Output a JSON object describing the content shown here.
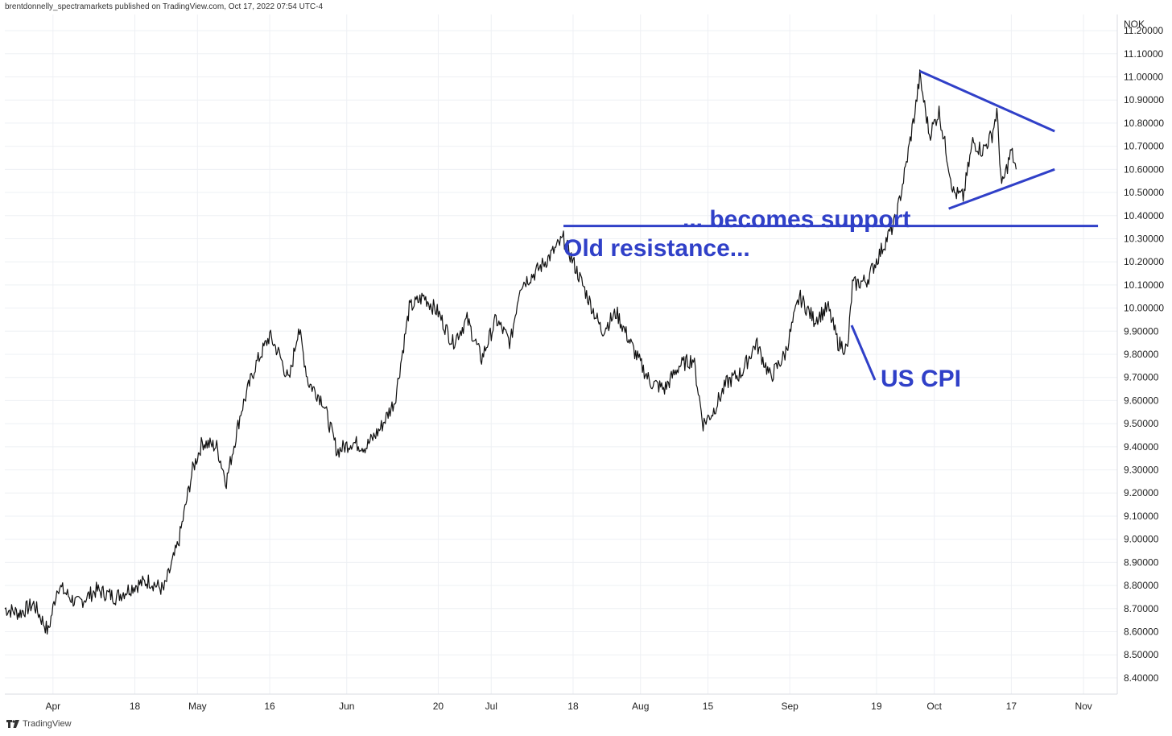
{
  "header": {
    "attribution": "brentdonnelly_spectramarkets published on TradingView.com, Oct 17, 2022 07:54 UTC-4"
  },
  "footer": {
    "brand": "TradingView"
  },
  "colors": {
    "annotation": "#3040c8",
    "price": "#111111",
    "grid": "#eef0f4",
    "axis": "#d8dbe2"
  },
  "chart_data": {
    "type": "line",
    "currency_label": "NOK",
    "ylim": [
      8.33,
      11.27
    ],
    "y_ticks": [
      "11.20000",
      "11.10000",
      "11.00000",
      "10.90000",
      "10.80000",
      "10.70000",
      "10.60000",
      "10.50000",
      "10.40000",
      "10.30000",
      "10.20000",
      "10.10000",
      "10.00000",
      "9.90000",
      "9.80000",
      "9.70000",
      "9.60000",
      "9.50000",
      "9.40000",
      "9.30000",
      "9.20000",
      "9.10000",
      "9.00000",
      "8.90000",
      "8.80000",
      "8.70000",
      "8.60000",
      "8.50000",
      "8.40000"
    ],
    "x_ticks": [
      "Apr",
      "18",
      "May",
      "16",
      "Jun",
      "20",
      "Jul",
      "18",
      "Aug",
      "15",
      "Sep",
      "19",
      "Oct",
      "17",
      "Nov"
    ],
    "x_tick_dates": [
      "2022-04-01",
      "2022-04-18",
      "2022-05-01",
      "2022-05-16",
      "2022-06-01",
      "2022-06-20",
      "2022-07-01",
      "2022-07-18",
      "2022-08-01",
      "2022-08-15",
      "2022-09-01",
      "2022-09-19",
      "2022-10-01",
      "2022-10-17",
      "2022-11-01"
    ],
    "xlim": [
      "2022-03-22",
      "2022-11-08"
    ],
    "series": [
      {
        "values": [
          [
            "2022-03-22",
            8.7
          ],
          [
            "2022-03-25",
            8.68
          ],
          [
            "2022-03-28",
            8.72
          ],
          [
            "2022-03-31",
            8.6
          ],
          [
            "2022-04-02",
            8.8
          ],
          [
            "2022-04-06",
            8.72
          ],
          [
            "2022-04-10",
            8.78
          ],
          [
            "2022-04-14",
            8.75
          ],
          [
            "2022-04-18",
            8.8
          ],
          [
            "2022-04-21",
            8.82
          ],
          [
            "2022-04-24",
            8.78
          ],
          [
            "2022-04-27",
            8.98
          ],
          [
            "2022-04-30",
            9.3
          ],
          [
            "2022-05-02",
            9.42
          ],
          [
            "2022-05-05",
            9.4
          ],
          [
            "2022-05-07",
            9.25
          ],
          [
            "2022-05-10",
            9.55
          ],
          [
            "2022-05-13",
            9.75
          ],
          [
            "2022-05-16",
            9.88
          ],
          [
            "2022-05-18",
            9.8
          ],
          [
            "2022-05-20",
            9.68
          ],
          [
            "2022-05-22",
            9.92
          ],
          [
            "2022-05-24",
            9.68
          ],
          [
            "2022-05-27",
            9.6
          ],
          [
            "2022-05-30",
            9.38
          ],
          [
            "2022-06-02",
            9.42
          ],
          [
            "2022-06-05",
            9.4
          ],
          [
            "2022-06-08",
            9.48
          ],
          [
            "2022-06-11",
            9.6
          ],
          [
            "2022-06-14",
            10.0
          ],
          [
            "2022-06-17",
            10.05
          ],
          [
            "2022-06-20",
            9.98
          ],
          [
            "2022-06-23",
            9.85
          ],
          [
            "2022-06-26",
            9.95
          ],
          [
            "2022-06-29",
            9.78
          ],
          [
            "2022-07-02",
            9.95
          ],
          [
            "2022-07-05",
            9.85
          ],
          [
            "2022-07-07",
            10.1
          ],
          [
            "2022-07-10",
            10.15
          ],
          [
            "2022-07-13",
            10.22
          ],
          [
            "2022-07-16",
            10.3
          ],
          [
            "2022-07-19",
            10.15
          ],
          [
            "2022-07-21",
            10.05
          ],
          [
            "2022-07-24",
            9.9
          ],
          [
            "2022-07-27",
            9.98
          ],
          [
            "2022-07-31",
            9.8
          ],
          [
            "2022-08-03",
            9.68
          ],
          [
            "2022-08-06",
            9.65
          ],
          [
            "2022-08-09",
            9.75
          ],
          [
            "2022-08-12",
            9.78
          ],
          [
            "2022-08-14",
            9.5
          ],
          [
            "2022-08-16",
            9.55
          ],
          [
            "2022-08-19",
            9.68
          ],
          [
            "2022-08-22",
            9.72
          ],
          [
            "2022-08-25",
            9.85
          ],
          [
            "2022-08-28",
            9.7
          ],
          [
            "2022-08-31",
            9.8
          ],
          [
            "2022-09-03",
            10.05
          ],
          [
            "2022-09-06",
            9.95
          ],
          [
            "2022-09-09",
            10.0
          ],
          [
            "2022-09-11",
            9.85
          ],
          [
            "2022-09-13",
            9.82
          ],
          [
            "2022-09-14",
            10.1
          ],
          [
            "2022-09-17",
            10.12
          ],
          [
            "2022-09-20",
            10.25
          ],
          [
            "2022-09-23",
            10.38
          ],
          [
            "2022-09-25",
            10.6
          ],
          [
            "2022-09-27",
            10.85
          ],
          [
            "2022-09-28",
            11.0
          ],
          [
            "2022-09-30",
            10.75
          ],
          [
            "2022-10-02",
            10.85
          ],
          [
            "2022-10-05",
            10.5
          ],
          [
            "2022-10-07",
            10.48
          ],
          [
            "2022-10-09",
            10.72
          ],
          [
            "2022-10-11",
            10.68
          ],
          [
            "2022-10-13",
            10.75
          ],
          [
            "2022-10-14",
            10.85
          ],
          [
            "2022-10-15",
            10.52
          ],
          [
            "2022-10-17",
            10.68
          ],
          [
            "2022-10-18",
            10.6
          ]
        ]
      }
    ],
    "annotations": [
      {
        "text": "Old resistance...",
        "type": "horizontal-line",
        "y": 10.355,
        "x_start": "2022-07-16",
        "x_end": "2022-11-04"
      },
      {
        "text": "... becomes support"
      },
      {
        "text": "US CPI",
        "type": "callout",
        "date": "2022-09-13"
      },
      {
        "type": "triangle",
        "upper": [
          [
            "2022-09-28",
            11.025
          ],
          [
            "2022-10-26",
            10.765
          ]
        ],
        "lower": [
          [
            "2022-10-04",
            10.43
          ],
          [
            "2022-10-26",
            10.6
          ]
        ]
      }
    ]
  }
}
